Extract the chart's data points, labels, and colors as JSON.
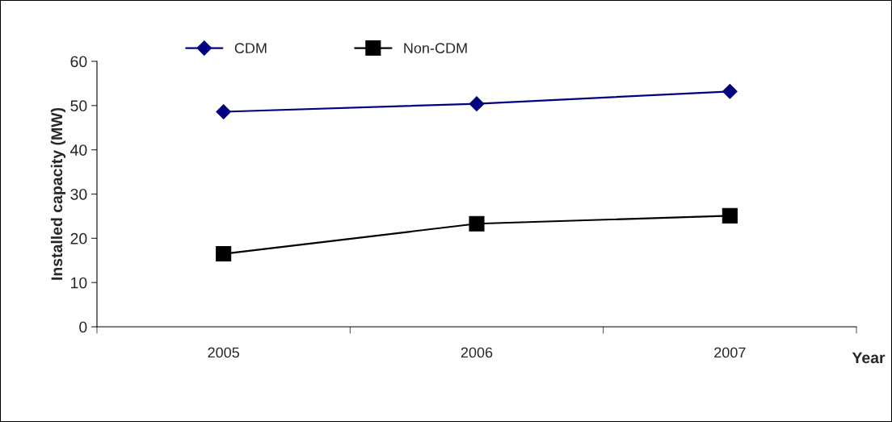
{
  "chart_data": {
    "type": "line",
    "ylabel": "Installed capacity (MW)",
    "xlabel": "Year",
    "categories": [
      "2005",
      "2006",
      "2007"
    ],
    "series": [
      {
        "name": "CDM",
        "color": "#000080",
        "marker": "diamond",
        "values": [
          48.6,
          50.4,
          53.2
        ]
      },
      {
        "name": "Non-CDM",
        "color": "#000000",
        "marker": "square",
        "values": [
          16.5,
          23.3,
          25.1
        ]
      }
    ],
    "ylim": [
      0,
      60
    ],
    "yticks": [
      0,
      10,
      20,
      30,
      40,
      50,
      60
    ],
    "grid": false,
    "legend": "top",
    "line_style": "solid"
  }
}
